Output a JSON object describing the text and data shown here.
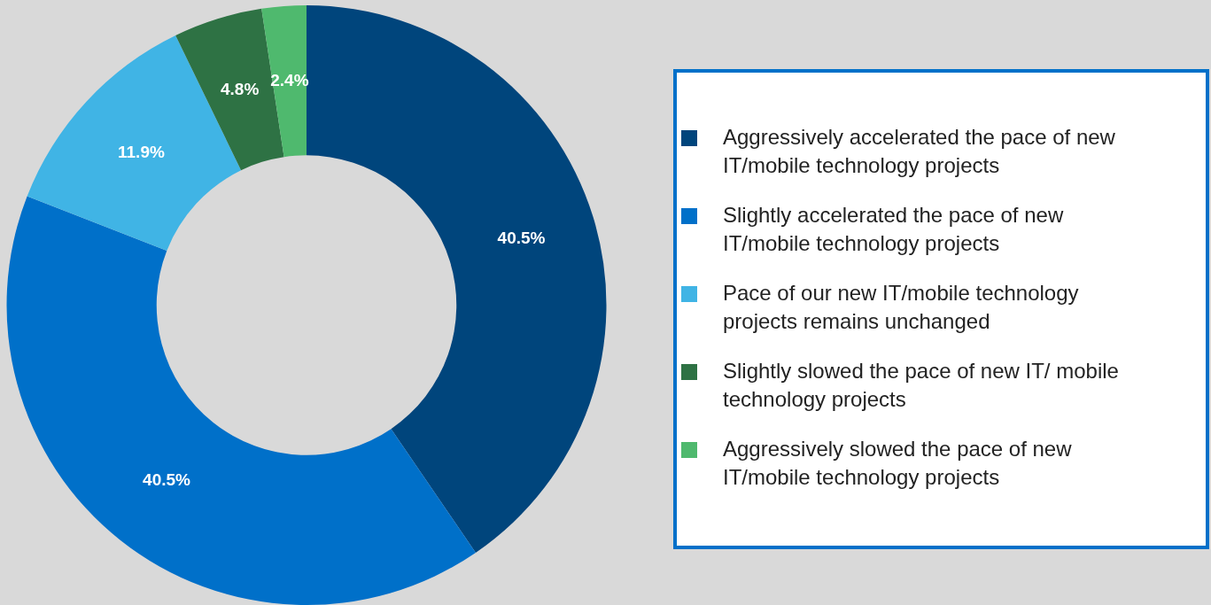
{
  "chart_data": {
    "type": "donut",
    "categories": [
      "Aggressively accelerated the pace of new IT/mobile technology projects",
      "Slightly accelerated the pace of new IT/mobile technology projects",
      "Pace of our new IT/mobile technology projects remains unchanged",
      "Slightly slowed the pace of new IT/ mobile technology projects",
      "Aggressively slowed the pace of new IT/mobile technology projects"
    ],
    "values": [
      40.5,
      40.5,
      11.9,
      4.8,
      2.4
    ],
    "colors": [
      "#00457c",
      "#0070c9",
      "#40b4e5",
      "#2e7244",
      "#4fb96e"
    ],
    "value_labels": [
      "40.5%",
      "40.5%",
      "11.9%",
      "4.8%",
      "2.4%"
    ],
    "legend": "right"
  }
}
